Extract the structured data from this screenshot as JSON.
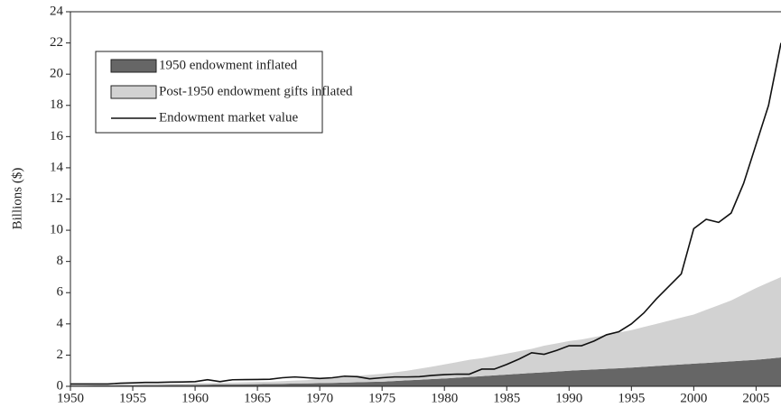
{
  "chart_data": {
    "type": "area",
    "y_label": "Billions ($)",
    "x": [
      1950,
      1951,
      1952,
      1953,
      1954,
      1955,
      1956,
      1957,
      1958,
      1959,
      1960,
      1961,
      1962,
      1963,
      1964,
      1965,
      1966,
      1967,
      1968,
      1969,
      1970,
      1971,
      1972,
      1973,
      1974,
      1975,
      1976,
      1977,
      1978,
      1979,
      1980,
      1981,
      1982,
      1983,
      1984,
      1985,
      1986,
      1987,
      1988,
      1989,
      1990,
      1991,
      1992,
      1993,
      1994,
      1995,
      1996,
      1997,
      1998,
      1999,
      2000,
      2001,
      2002,
      2003,
      2004,
      2005,
      2006,
      2007
    ],
    "series": [
      {
        "name": "1950 endowment inflated",
        "color": "#666666",
        "kind": "area",
        "values": [
          0.05,
          0.05,
          0.06,
          0.06,
          0.07,
          0.07,
          0.08,
          0.08,
          0.09,
          0.09,
          0.1,
          0.11,
          0.12,
          0.12,
          0.13,
          0.14,
          0.15,
          0.16,
          0.18,
          0.19,
          0.2,
          0.22,
          0.24,
          0.26,
          0.28,
          0.3,
          0.34,
          0.38,
          0.42,
          0.46,
          0.5,
          0.55,
          0.6,
          0.65,
          0.7,
          0.75,
          0.8,
          0.85,
          0.9,
          0.95,
          1.0,
          1.04,
          1.08,
          1.12,
          1.16,
          1.2,
          1.25,
          1.3,
          1.35,
          1.4,
          1.45,
          1.5,
          1.55,
          1.6,
          1.65,
          1.7,
          1.77,
          1.85
        ]
      },
      {
        "name": "Post-1950 endowment gifts inflated",
        "color": "#d2d2d2",
        "kind": "area",
        "values": [
          0.05,
          0.05,
          0.05,
          0.06,
          0.06,
          0.06,
          0.07,
          0.07,
          0.07,
          0.08,
          0.1,
          0.1,
          0.11,
          0.12,
          0.13,
          0.14,
          0.15,
          0.17,
          0.19,
          0.21,
          0.3,
          0.33,
          0.36,
          0.42,
          0.46,
          0.5,
          0.56,
          0.62,
          0.71,
          0.8,
          0.9,
          1.0,
          1.1,
          1.15,
          1.25,
          1.35,
          1.45,
          1.55,
          1.7,
          1.8,
          1.9,
          1.96,
          2.07,
          2.18,
          2.29,
          2.4,
          2.55,
          2.7,
          2.85,
          3.0,
          3.15,
          3.4,
          3.65,
          3.9,
          4.25,
          4.6,
          4.88,
          5.15
        ]
      },
      {
        "name": "Endowment market value",
        "color": "#111111",
        "kind": "line",
        "values": [
          0.15,
          0.15,
          0.15,
          0.15,
          0.2,
          0.22,
          0.25,
          0.25,
          0.27,
          0.28,
          0.3,
          0.42,
          0.3,
          0.42,
          0.43,
          0.44,
          0.45,
          0.55,
          0.6,
          0.55,
          0.5,
          0.55,
          0.65,
          0.62,
          0.48,
          0.55,
          0.6,
          0.6,
          0.62,
          0.7,
          0.75,
          0.78,
          0.78,
          1.1,
          1.1,
          1.4,
          1.75,
          2.15,
          2.05,
          2.3,
          2.6,
          2.6,
          2.9,
          3.3,
          3.5,
          4.0,
          4.7,
          5.6,
          6.4,
          7.2,
          10.1,
          10.7,
          10.5,
          11.1,
          13.0,
          15.5,
          18.0,
          22.0
        ]
      }
    ],
    "xlim": [
      1950,
      2007
    ],
    "xticks": [
      1950,
      1955,
      1960,
      1965,
      1970,
      1975,
      1980,
      1985,
      1990,
      1995,
      2000,
      2005
    ],
    "ylim": [
      0,
      24
    ],
    "yticks": [
      0,
      2,
      4,
      6,
      8,
      10,
      12,
      14,
      16,
      18,
      20,
      22,
      24
    ],
    "legend": "upper left"
  }
}
